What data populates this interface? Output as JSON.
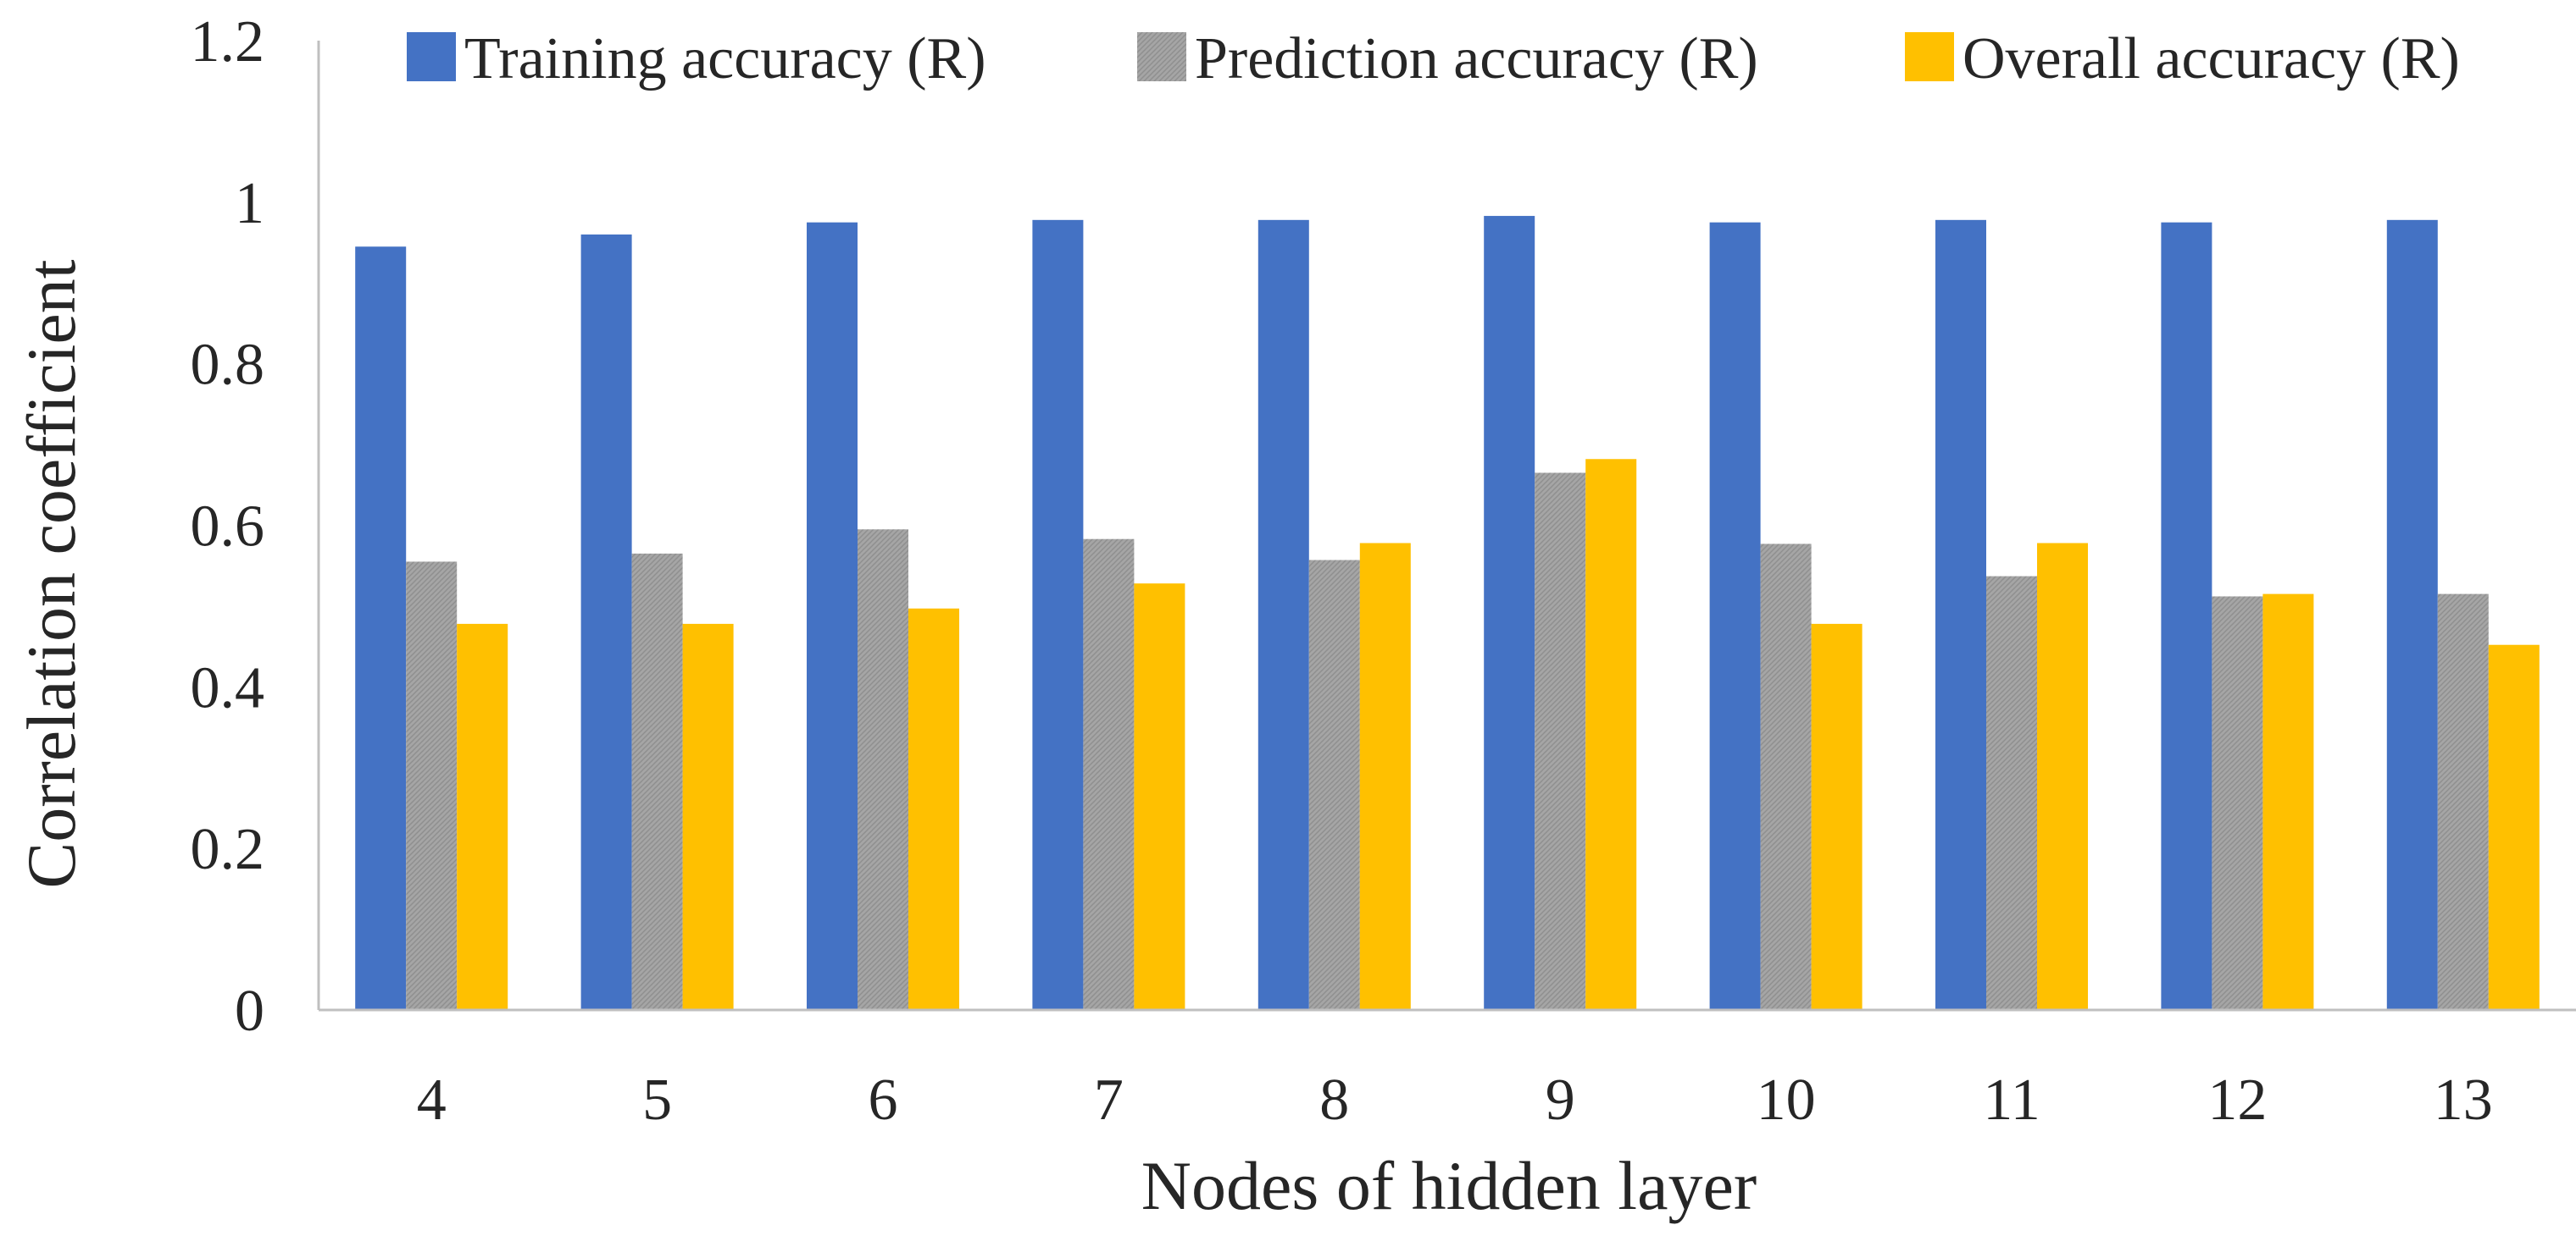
{
  "chart_data": {
    "type": "bar",
    "title": "",
    "xlabel": "Nodes of hidden layer",
    "ylabel": "Correlation coefficient",
    "ylim": [
      0,
      1.2
    ],
    "yticks": [
      "0",
      "0.2",
      "0.4",
      "0.6",
      "0.8",
      "1",
      "1.2"
    ],
    "ytick_values": [
      0,
      0.2,
      0.4,
      0.6,
      0.8,
      1.0,
      1.2
    ],
    "grid": false,
    "legend_position": "top",
    "categories": [
      "4",
      "5",
      "6",
      "7",
      "8",
      "9",
      "10",
      "11",
      "12",
      "13"
    ],
    "series": [
      {
        "name": "Training accuracy (R)",
        "color": "#4472C4",
        "values": [
          0.945,
          0.96,
          0.975,
          0.978,
          0.978,
          0.983,
          0.975,
          0.978,
          0.975,
          0.978
        ]
      },
      {
        "name": "Prediction accuracy (R)",
        "color": "#A5A5A5",
        "values": [
          0.555,
          0.565,
          0.595,
          0.583,
          0.557,
          0.665,
          0.577,
          0.537,
          0.512,
          0.515
        ]
      },
      {
        "name": "Overall accuracy (R)",
        "color": "#FFC000",
        "values": [
          0.478,
          0.478,
          0.497,
          0.528,
          0.578,
          0.682,
          0.478,
          0.578,
          0.515,
          0.452
        ]
      }
    ]
  }
}
